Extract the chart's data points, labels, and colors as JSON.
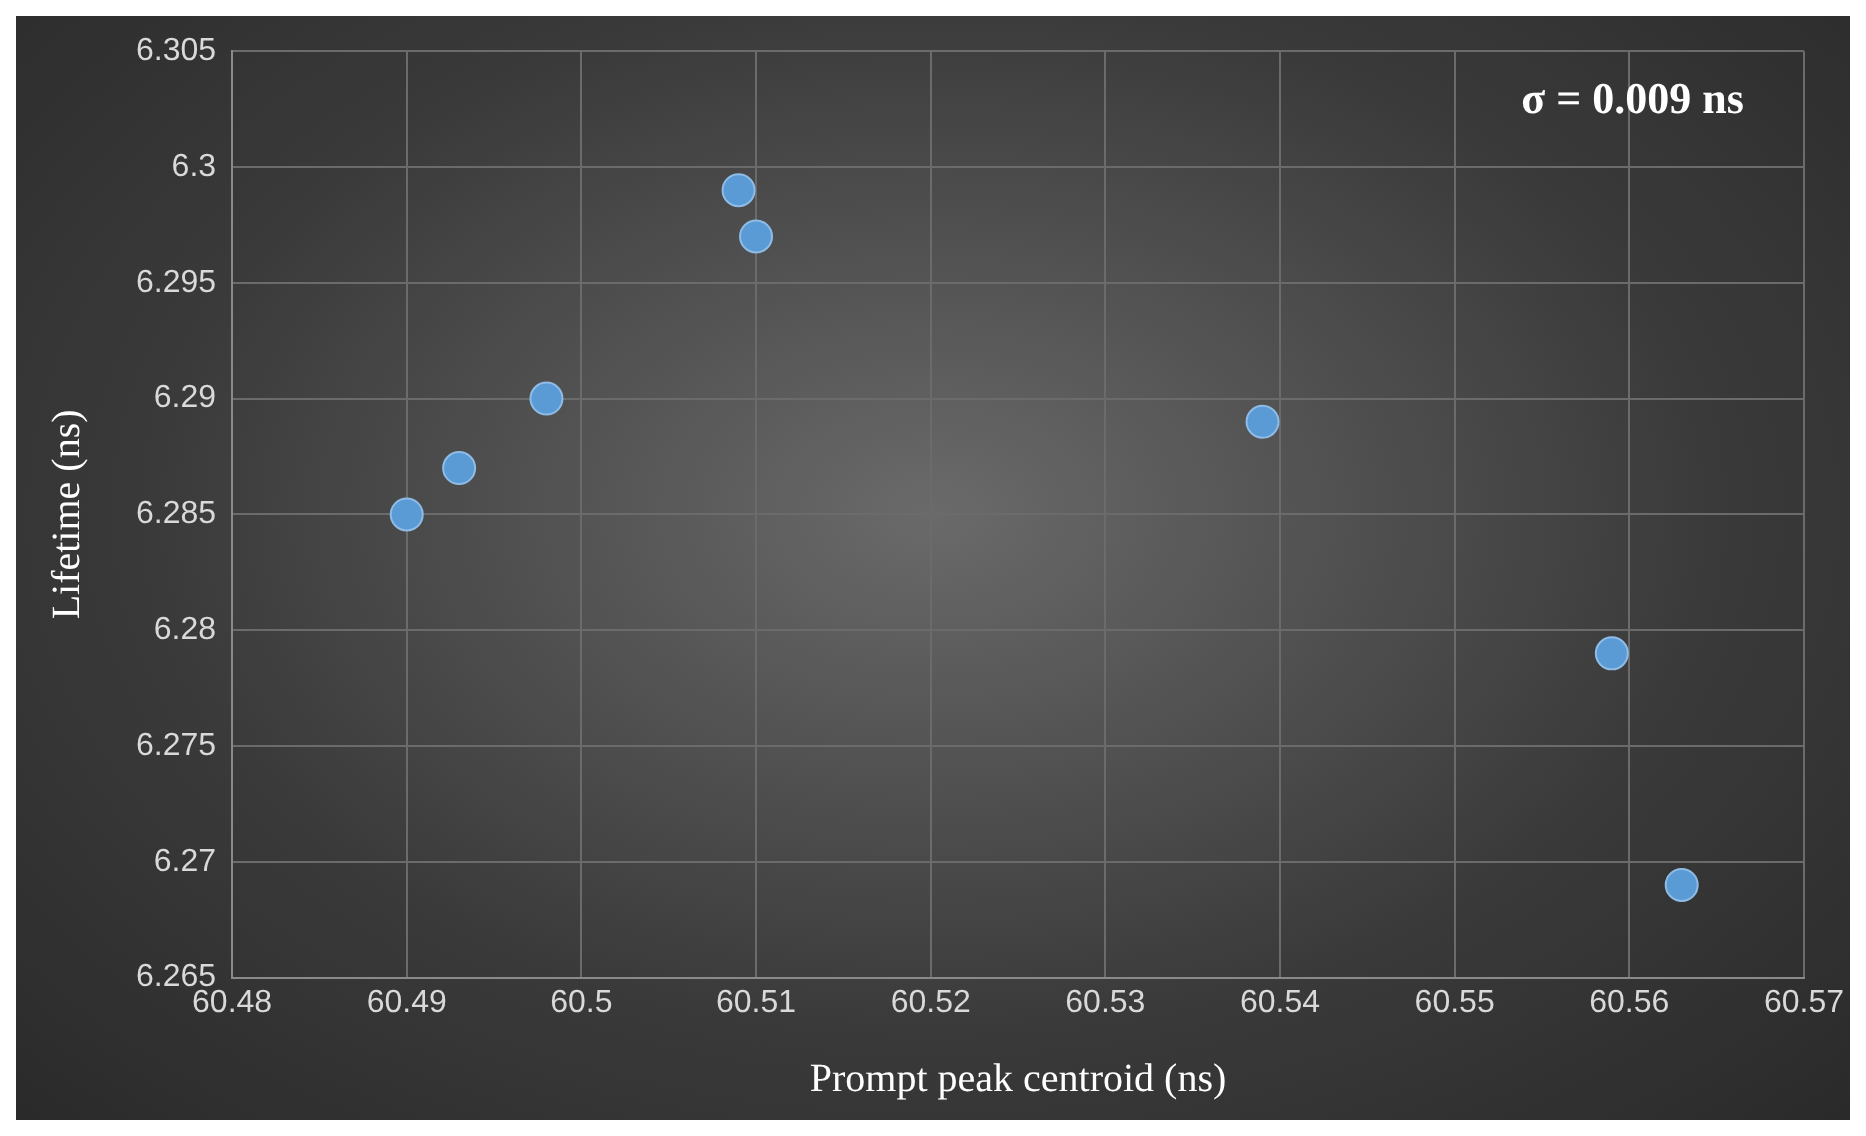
{
  "chart_data": {
    "type": "scatter",
    "xlabel": "Prompt peak centroid (ns)",
    "ylabel": "Lifetime (ns)",
    "annotations": [
      "σ = 0.009 ns"
    ],
    "x": [
      60.49,
      60.493,
      60.498,
      60.509,
      60.51,
      60.539,
      60.559,
      60.563
    ],
    "series": [
      {
        "color": "#5b9bd5",
        "values": [
          6.285,
          6.287,
          6.29,
          6.299,
          6.297,
          6.289,
          6.279,
          6.269
        ]
      }
    ],
    "xlim": [
      60.48,
      60.57
    ],
    "xticks": [
      60.48,
      60.49,
      60.5,
      60.51,
      60.52,
      60.53,
      60.54,
      60.55,
      60.56,
      60.57
    ],
    "ylim": [
      6.265,
      6.305
    ],
    "yticks": [
      6.265,
      6.27,
      6.275,
      6.28,
      6.285,
      6.29,
      6.295,
      6.3,
      6.305
    ],
    "grid": true,
    "legend": false,
    "marker": "circle"
  }
}
